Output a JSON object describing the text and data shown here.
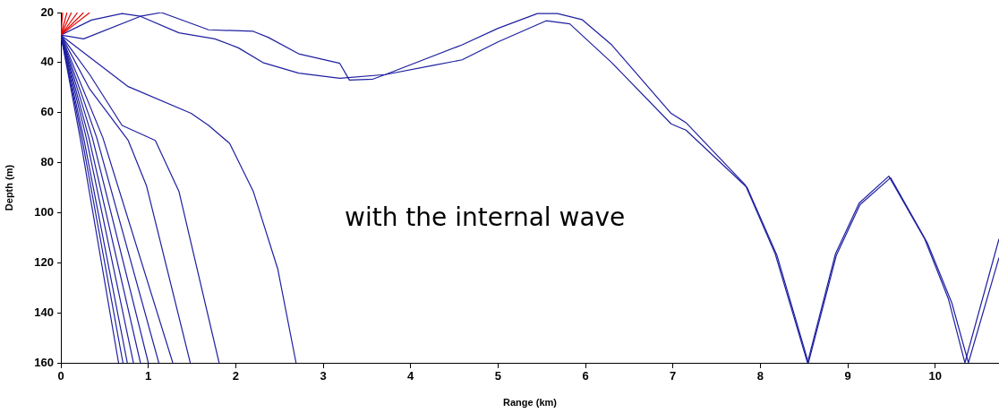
{
  "chart_data": {
    "type": "line",
    "xlabel": "Range (km)",
    "ylabel": "Depth (m)",
    "xlim": [
      0,
      10.73
    ],
    "ylim": [
      160,
      20
    ],
    "xticks": [
      0,
      1,
      2,
      3,
      4,
      5,
      6,
      7,
      8,
      9,
      10
    ],
    "yticks": [
      20,
      40,
      60,
      80,
      100,
      120,
      140,
      160
    ],
    "grid": false,
    "legend": false,
    "marker": "none",
    "annotations": [
      "with the internal wave"
    ],
    "series": [
      {
        "color": "#e00000",
        "x": [
          0,
          0.02
        ],
        "values": [
          29,
          20
        ]
      },
      {
        "color": "#e00000",
        "x": [
          0,
          0.07
        ],
        "values": [
          29,
          20
        ]
      },
      {
        "color": "#e00000",
        "x": [
          0,
          0.12
        ],
        "values": [
          29,
          20
        ]
      },
      {
        "color": "#e00000",
        "x": [
          0,
          0.19
        ],
        "values": [
          29,
          20
        ]
      },
      {
        "color": "#e00000",
        "x": [
          0,
          0.26
        ],
        "values": [
          29,
          20
        ]
      },
      {
        "color": "#e00000",
        "x": [
          0,
          0.33
        ],
        "values": [
          29,
          20
        ]
      },
      {
        "color": "#1f1fa0",
        "x": [
          0,
          0.22,
          0.66
        ],
        "values": [
          29,
          70,
          160
        ]
      },
      {
        "color": "#1f1fa0",
        "x": [
          0,
          0.24,
          0.71
        ],
        "values": [
          29,
          70,
          160
        ]
      },
      {
        "color": "#1f1fa0",
        "x": [
          0,
          0.26,
          0.76
        ],
        "values": [
          29,
          70,
          160
        ]
      },
      {
        "color": "#1f1fa0",
        "x": [
          0,
          0.29,
          0.83
        ],
        "values": [
          29,
          70,
          160
        ]
      },
      {
        "color": "#1f1fa0",
        "x": [
          0,
          0.32,
          0.91
        ],
        "values": [
          29,
          70,
          160
        ]
      },
      {
        "color": "#1f1fa0",
        "x": [
          0,
          0.36,
          1.0
        ],
        "values": [
          29,
          70,
          160
        ]
      },
      {
        "color": "#1f1fa0",
        "x": [
          0,
          0.41,
          1.12
        ],
        "values": [
          29,
          70,
          160
        ]
      },
      {
        "color": "#1f1fa0",
        "x": [
          0,
          0.48,
          1.28
        ],
        "values": [
          29,
          70,
          160
        ]
      },
      {
        "color": "#1f1fa0",
        "x": [
          0,
          0.33,
          0.77,
          0.98,
          1.48
        ],
        "values": [
          29,
          50.6,
          71.1,
          89.3,
          160
        ]
      },
      {
        "color": "#1f1fa0",
        "x": [
          0,
          0.33,
          0.7,
          1.08,
          1.35,
          1.81
        ],
        "values": [
          29,
          44.8,
          65.1,
          71.1,
          91.4,
          160
        ]
      },
      {
        "color": "#1f1fa0",
        "x": [
          0,
          0.77,
          1.49,
          1.69,
          1.93,
          2.2,
          2.48,
          2.69
        ],
        "values": [
          29,
          49.6,
          60.3,
          65.1,
          72.3,
          91.4,
          122.4,
          160
        ]
      },
      {
        "color": "#1f1fa0",
        "x": [
          0,
          0.35,
          0.7,
          0.91,
          1.35,
          1.76,
          2.03,
          2.31,
          2.72,
          3.19,
          3.71,
          4.59,
          5.0,
          5.45,
          5.68,
          5.96,
          6.3,
          6.98,
          7.15,
          7.83,
          8.17,
          8.54,
          8.86,
          9.13,
          9.47,
          9.88,
          10.15,
          10.34,
          10.73
        ],
        "values": [
          29,
          23,
          20.4,
          21.5,
          28.1,
          30.5,
          34.1,
          40.0,
          44.2,
          46.3,
          44.8,
          32.9,
          26.3,
          20.4,
          20.4,
          22.8,
          32.9,
          60.3,
          64,
          89,
          116.4,
          160,
          116.4,
          96.2,
          85.4,
          110.5,
          134.3,
          160,
          110.5
        ]
      },
      {
        "color": "#1f1fa0",
        "x": [
          0,
          0.26,
          0.91,
          1.15,
          1.69,
          2.2,
          2.37,
          2.72,
          3.19,
          3.3,
          3.57,
          3.71,
          4.25,
          4.59,
          5.0,
          5.55,
          5.82,
          6.3,
          6.98,
          7.15,
          7.85,
          8.19,
          8.55,
          8.87,
          9.14,
          9.49,
          9.91,
          10.19,
          10.38,
          10.73
        ],
        "values": [
          29,
          30.5,
          21.5,
          20.0,
          26.9,
          27.5,
          29.9,
          36.5,
          40.3,
          47.0,
          46.6,
          44.8,
          41.2,
          38.9,
          31.7,
          23.3,
          24.5,
          40.0,
          64.5,
          67,
          90,
          117,
          160,
          117,
          96.8,
          86,
          112,
          136,
          160,
          118
        ]
      }
    ]
  }
}
